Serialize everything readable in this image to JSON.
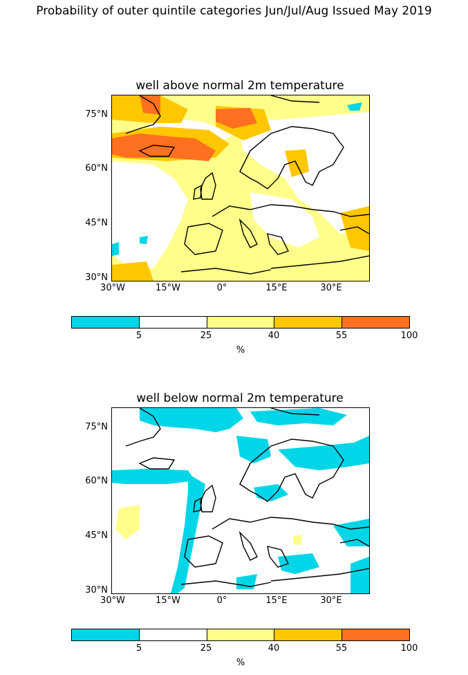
{
  "figure": {
    "title": "Probability of outer quintile categories Jun/Jul/Aug Issued May 2019"
  },
  "panels": [
    {
      "id": "above",
      "title": "well above normal 2m temperature",
      "dominant_category": "25–40"
    },
    {
      "id": "below",
      "title": "well below normal 2m temperature",
      "dominant_category": "5–25"
    }
  ],
  "axes": {
    "lat_labels": [
      "75°N",
      "60°N",
      "45°N",
      "30°N"
    ],
    "lon_labels": [
      "30°W",
      "15°W",
      "0°",
      "15°E",
      "30°E"
    ]
  },
  "colorbar": {
    "unit": "%",
    "ticks": [
      "5",
      "25",
      "40",
      "55",
      "100"
    ],
    "colors": [
      "#00d6e8",
      "#ffffff",
      "#fffe8a",
      "#ffc700",
      "#ff7020"
    ]
  },
  "palette": {
    "cyan": "#00d6e8",
    "white": "#ffffff",
    "yellow": "#fffe8a",
    "amber": "#ffc700",
    "orange": "#ff7020",
    "coast": "#000000"
  }
}
